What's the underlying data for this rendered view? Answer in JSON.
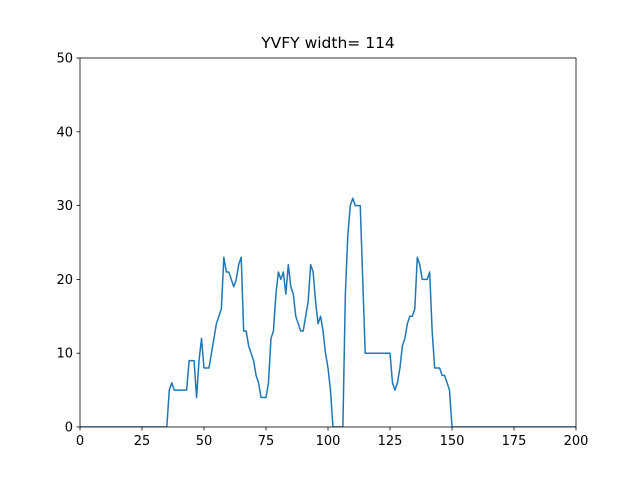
{
  "chart_data": {
    "type": "line",
    "title": "YVFY width= 114",
    "xlabel": "",
    "ylabel": "",
    "xlim": [
      0,
      200
    ],
    "ylim": [
      0,
      50
    ],
    "xticks": [
      0,
      25,
      50,
      75,
      100,
      125,
      150,
      175,
      200
    ],
    "yticks": [
      0,
      10,
      20,
      30,
      40,
      50
    ],
    "grid": false,
    "legend": "none",
    "line_color": "#1f77b4",
    "series": [
      {
        "x": [
          0,
          1,
          2,
          3,
          4,
          5,
          6,
          7,
          8,
          9,
          10,
          11,
          12,
          13,
          14,
          15,
          16,
          17,
          18,
          19,
          20,
          21,
          22,
          23,
          24,
          25,
          26,
          27,
          28,
          29,
          30,
          31,
          32,
          33,
          34,
          35,
          36,
          37,
          38,
          39,
          40,
          41,
          42,
          43,
          44,
          45,
          46,
          47,
          48,
          49,
          50,
          51,
          52,
          53,
          54,
          55,
          56,
          57,
          58,
          59,
          60,
          61,
          62,
          63,
          64,
          65,
          66,
          67,
          68,
          69,
          70,
          71,
          72,
          73,
          74,
          75,
          76,
          77,
          78,
          79,
          80,
          81,
          82,
          83,
          84,
          85,
          86,
          87,
          88,
          89,
          90,
          91,
          92,
          93,
          94,
          95,
          96,
          97,
          98,
          99,
          100,
          101,
          102,
          103,
          104,
          105,
          106,
          107,
          108,
          109,
          110,
          111,
          112,
          113,
          114,
          115,
          116,
          117,
          118,
          119,
          120,
          121,
          122,
          123,
          124,
          125,
          126,
          127,
          128,
          129,
          130,
          131,
          132,
          133,
          134,
          135,
          136,
          137,
          138,
          139,
          140,
          141,
          142,
          143,
          144,
          145,
          146,
          147,
          148,
          149,
          150,
          151,
          152,
          153,
          154,
          155,
          156,
          157,
          158,
          159,
          160,
          161,
          162,
          163,
          164,
          165,
          166,
          167,
          168,
          169,
          170,
          171,
          172,
          173,
          174,
          175,
          176,
          177,
          178,
          179,
          180,
          181,
          182,
          183,
          184,
          185,
          186,
          187,
          188,
          189,
          190,
          191,
          192,
          193,
          194,
          195,
          196,
          197,
          198,
          199,
          200
        ],
        "values": [
          0,
          0,
          0,
          0,
          0,
          0,
          0,
          0,
          0,
          0,
          0,
          0,
          0,
          0,
          0,
          0,
          0,
          0,
          0,
          0,
          0,
          0,
          0,
          0,
          0,
          0,
          0,
          0,
          0,
          0,
          0,
          0,
          0,
          0,
          0,
          0,
          5,
          6,
          5,
          5,
          5,
          5,
          5,
          5,
          9,
          9,
          9,
          4,
          9,
          12,
          8,
          8,
          8,
          10,
          12,
          14,
          15,
          16,
          23,
          21,
          21,
          20,
          19,
          20,
          22,
          23,
          13,
          13,
          11,
          10,
          9,
          7,
          6,
          4,
          4,
          4,
          6,
          12,
          13,
          18,
          21,
          20,
          21,
          18,
          22,
          19,
          18,
          15,
          14,
          13,
          13,
          15,
          17,
          22,
          21,
          17,
          14,
          15,
          13,
          10,
          8,
          5,
          0,
          0,
          0,
          0,
          0,
          18,
          26,
          30,
          31,
          30,
          30,
          30,
          20,
          10,
          10,
          10,
          10,
          10,
          10,
          10,
          10,
          10,
          10,
          10,
          6,
          5,
          6,
          8,
          11,
          12,
          14,
          15,
          15,
          16,
          23,
          22,
          20,
          20,
          20,
          21,
          13,
          8,
          8,
          8,
          7,
          7,
          6,
          5,
          0,
          0,
          0,
          0,
          0,
          0,
          0,
          0,
          0,
          0,
          0,
          0,
          0,
          0,
          0,
          0,
          0,
          0,
          0,
          0,
          0,
          0,
          0,
          0,
          0,
          0,
          0,
          0,
          0,
          0,
          0,
          0,
          0,
          0,
          0,
          0,
          0,
          0,
          0,
          0,
          0,
          0,
          0,
          0,
          0,
          0,
          0,
          0,
          0,
          0,
          0
        ]
      }
    ]
  }
}
